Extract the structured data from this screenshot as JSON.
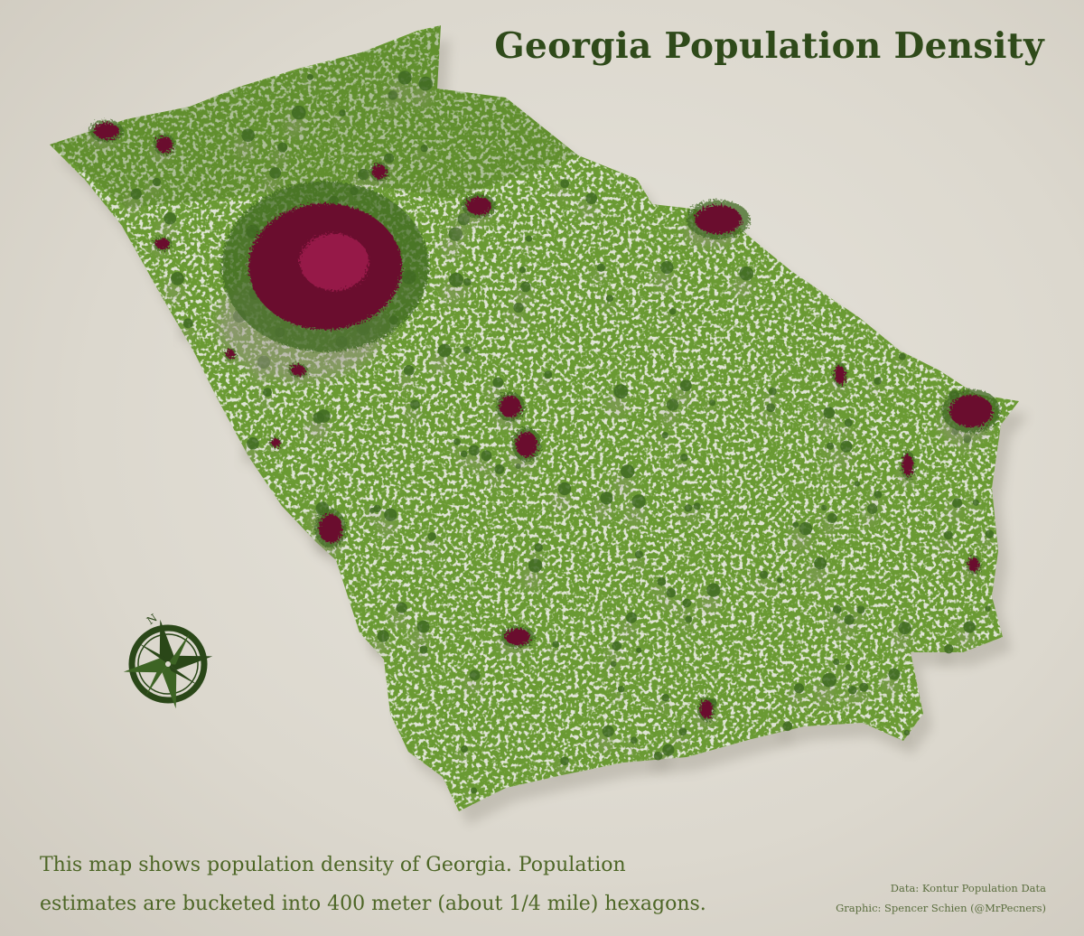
{
  "title": "Georgia Population Density",
  "description": {
    "line1": "This map shows population density of Georgia. Population",
    "line2": "estimates are bucketed into 400 meter (about 1/4 mile) hexagons."
  },
  "credits": {
    "data": "Data: Kontur Population Data",
    "graphic": "Graphic: Spencer Schien (@MrPecners)"
  },
  "compass": {
    "label": "N",
    "icon": "compass-rose-icon"
  },
  "colors": {
    "low_density": "#6a9a33",
    "mid_density": "#3f6a22",
    "high_density": "#6b0c2e",
    "peak_density": "#a11c4f",
    "background": "#dcd8ce",
    "title": "#2f4a1a"
  },
  "map": {
    "region": "Georgia",
    "cell_size": "400 meter hexagons"
  }
}
